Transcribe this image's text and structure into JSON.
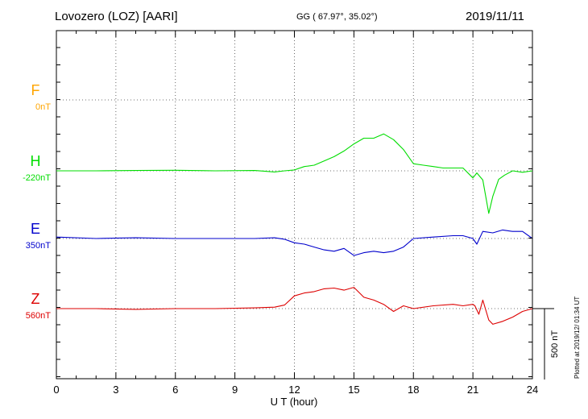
{
  "header": {
    "station": "Lovozero (LOZ)  [AARI]",
    "coords": "GG ( 67.97°,  35.02°)",
    "date": "2019/11/11"
  },
  "footer": {
    "plotted": "Plotted at 2019/12/ 01:34 UT"
  },
  "chart_data": {
    "type": "line",
    "title": "",
    "xlabel": "U T (hour)",
    "ylabel": "",
    "xlim": [
      0,
      24
    ],
    "x_ticks": [
      "0",
      "3",
      "6",
      "9",
      "12",
      "15",
      "18",
      "21",
      "24"
    ],
    "grid": true,
    "legend": "left",
    "scale_bar": "500 nT",
    "colors": {
      "F": "#ffa500",
      "H": "#00dd00",
      "E": "#0000cc",
      "Z": "#dd0000"
    },
    "series": [
      {
        "name": "F",
        "baseline": "0nT",
        "color": "#ffa500",
        "x": [],
        "y": []
      },
      {
        "name": "H",
        "baseline": "-220nT",
        "color": "#00dd00",
        "x": [
          0,
          2,
          4,
          6,
          8,
          10,
          11,
          11.5,
          12,
          12.5,
          13,
          13.5,
          14,
          14.5,
          15,
          15.5,
          16,
          16.5,
          17,
          17.5,
          18,
          18.5,
          19,
          19.5,
          20,
          20.5,
          21,
          21.2,
          21.5,
          21.8,
          22,
          22.3,
          22.6,
          23,
          23.5,
          24
        ],
        "y": [
          0,
          0,
          2,
          4,
          0,
          2,
          -8,
          0,
          6,
          30,
          40,
          70,
          100,
          140,
          190,
          230,
          230,
          260,
          220,
          150,
          50,
          40,
          30,
          20,
          20,
          20,
          -50,
          -15,
          -65,
          -300,
          -180,
          -60,
          -30,
          0,
          -10,
          0
        ]
      },
      {
        "name": "E",
        "baseline": "350nT",
        "color": "#0000cc",
        "x": [
          0,
          2,
          4,
          6,
          8,
          10,
          11,
          11.5,
          12,
          12.5,
          13,
          13.5,
          14,
          14.5,
          15,
          15.5,
          16,
          16.5,
          17,
          17.5,
          18,
          19,
          20,
          20.5,
          21,
          21.2,
          21.5,
          22,
          22.5,
          23,
          23.5,
          24
        ],
        "y": [
          10,
          0,
          5,
          0,
          0,
          0,
          5,
          -5,
          -30,
          -40,
          -60,
          -80,
          -90,
          -70,
          -120,
          -100,
          -90,
          -100,
          -90,
          -60,
          0,
          10,
          20,
          20,
          0,
          -40,
          50,
          40,
          60,
          50,
          50,
          0
        ]
      },
      {
        "name": "Z",
        "baseline": "560nT",
        "color": "#dd0000",
        "x": [
          0,
          2,
          4,
          6,
          8,
          10,
          11,
          11.5,
          12,
          12.5,
          13,
          13.5,
          14,
          14.5,
          15,
          15.5,
          16,
          16.5,
          17,
          17.5,
          18,
          19,
          20,
          20.5,
          21,
          21.1,
          21.3,
          21.5,
          21.8,
          22,
          22.5,
          23,
          23.5,
          24
        ],
        "y": [
          0,
          0,
          -5,
          0,
          0,
          5,
          10,
          25,
          90,
          110,
          120,
          140,
          145,
          130,
          150,
          80,
          60,
          30,
          -20,
          20,
          0,
          20,
          30,
          20,
          30,
          20,
          -40,
          60,
          -80,
          -110,
          -90,
          -60,
          -20,
          0
        ]
      }
    ]
  }
}
